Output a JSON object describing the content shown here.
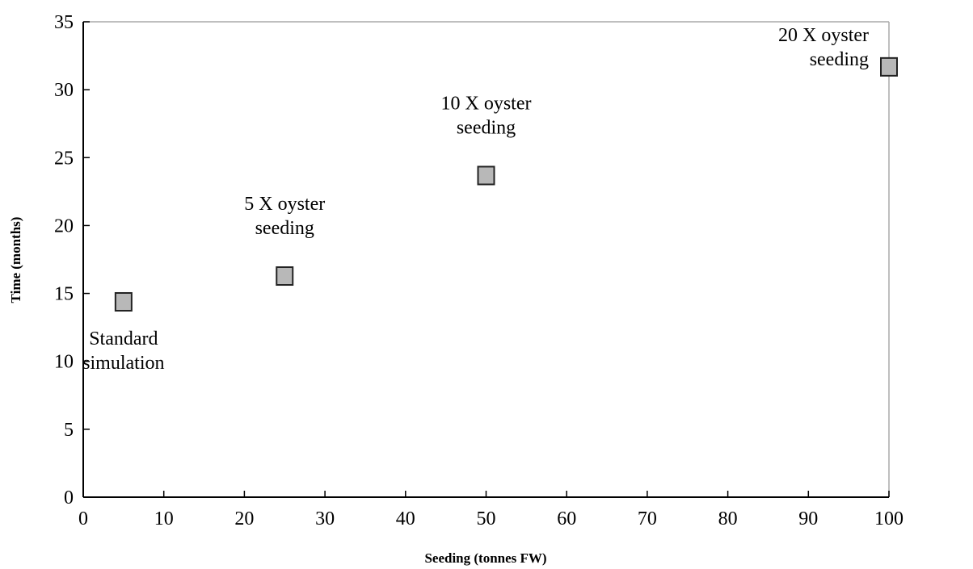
{
  "chart_data": {
    "type": "scatter",
    "title": "",
    "xlabel": "Seeding (tonnes FW)",
    "ylabel": "Time (months)",
    "xlim": [
      0,
      100
    ],
    "ylim": [
      0,
      35
    ],
    "xticks": [
      0,
      10,
      20,
      30,
      40,
      50,
      60,
      70,
      80,
      90,
      100
    ],
    "yticks": [
      0,
      5,
      10,
      15,
      20,
      25,
      30,
      35
    ],
    "grid": false,
    "legend": "none",
    "marker_color": "#b8b8b8",
    "marker_stroke": "#222222",
    "series": [
      {
        "points": [
          {
            "x": 5,
            "y": 14.5,
            "label_lines": [
              "Standard",
              "simulation"
            ]
          },
          {
            "x": 25,
            "y": 16.4,
            "label_lines": [
              "5 X oyster",
              "seeding"
            ]
          },
          {
            "x": 50,
            "y": 23.8,
            "label_lines": [
              "10 X oyster",
              "seeding"
            ]
          },
          {
            "x": 100,
            "y": 31.8,
            "label_lines": [
              "20 X oyster",
              "seeding"
            ]
          }
        ]
      }
    ]
  }
}
